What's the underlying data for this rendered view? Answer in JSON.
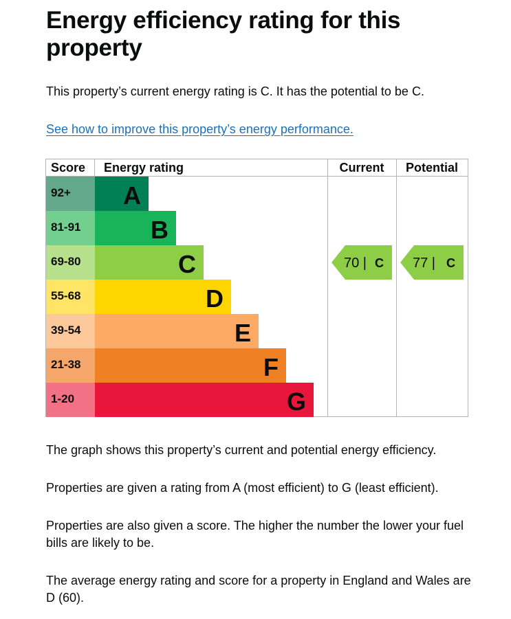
{
  "heading": "Energy efficiency rating for this property",
  "summary": "This property’s current energy rating is C. It has the potential to be C.",
  "improve_link": "See how to improve this property’s energy performance.",
  "chart_data": {
    "type": "table",
    "columns": {
      "score": "Score",
      "rating": "Energy rating",
      "current": "Current",
      "potential": "Potential"
    },
    "bands": [
      {
        "score": "92+",
        "letter": "A",
        "color": "#008054",
        "score_bg": "#64a88c"
      },
      {
        "score": "81-91",
        "letter": "B",
        "color": "#19b459",
        "score_bg": "#72cf8f"
      },
      {
        "score": "69-80",
        "letter": "C",
        "color": "#8dce46",
        "score_bg": "#b7e08c"
      },
      {
        "score": "55-68",
        "letter": "D",
        "color": "#ffd500",
        "score_bg": "#ffe466"
      },
      {
        "score": "39-54",
        "letter": "E",
        "color": "#fcaa65",
        "score_bg": "#fdc89a"
      },
      {
        "score": "21-38",
        "letter": "F",
        "color": "#ef8023",
        "score_bg": "#f5a66a"
      },
      {
        "score": "1-20",
        "letter": "G",
        "color": "#e9153b",
        "score_bg": "#f37185"
      }
    ],
    "current": {
      "score": 70,
      "band": "C",
      "label": "70 |",
      "letter": "C"
    },
    "potential": {
      "score": 77,
      "band": "C",
      "label": "77 |",
      "letter": "C"
    }
  },
  "notes": [
    "The graph shows this property’s current and potential energy efficiency.",
    "Properties are given a rating from A (most efficient) to G (least efficient).",
    "Properties are also given a score. The higher the number the lower your fuel bills are likely to be.",
    "The average energy rating and score for a property in England and Wales are D (60)."
  ]
}
